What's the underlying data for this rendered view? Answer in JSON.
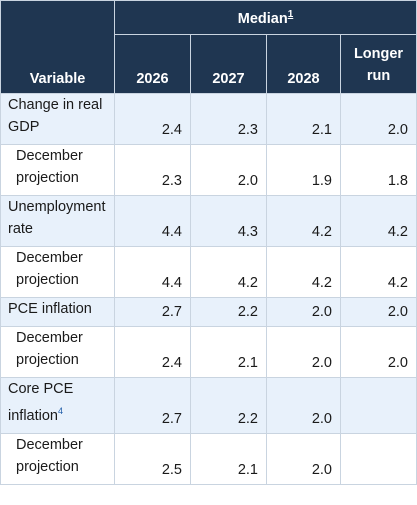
{
  "header": {
    "median_label": "Median",
    "median_footnote": "1",
    "variable_label": "Variable",
    "years": [
      "2026",
      "2027",
      "2028"
    ],
    "longer_run_line1": "Longer",
    "longer_run_line2": "run"
  },
  "rows": [
    {
      "label": "Change in real GDP",
      "values": [
        "2.4",
        "2.3",
        "2.1",
        "2.0"
      ]
    },
    {
      "label": "December projection",
      "values": [
        "2.3",
        "2.0",
        "1.9",
        "1.8"
      ]
    },
    {
      "label": "Unemployment rate",
      "values": [
        "4.4",
        "4.3",
        "4.2",
        "4.2"
      ]
    },
    {
      "label": "December projection",
      "values": [
        "4.4",
        "4.2",
        "4.2",
        "4.2"
      ]
    },
    {
      "label": "PCE inflation",
      "values": [
        "2.7",
        "2.2",
        "2.0",
        "2.0"
      ]
    },
    {
      "label": "December projection",
      "values": [
        "2.4",
        "2.1",
        "2.0",
        "2.0"
      ]
    },
    {
      "label": "Core PCE inflation",
      "footnote": "4",
      "values": [
        "2.7",
        "2.2",
        "2.0",
        ""
      ]
    },
    {
      "label": "December projection",
      "values": [
        "2.5",
        "2.1",
        "2.0",
        ""
      ]
    }
  ]
}
